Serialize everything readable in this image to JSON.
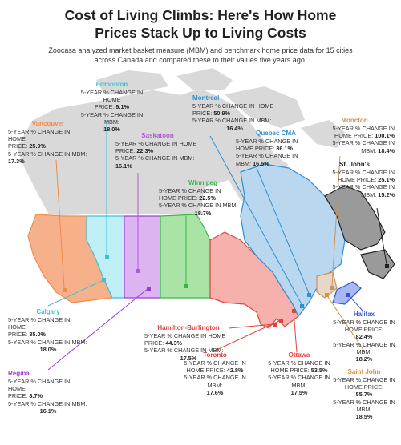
{
  "title_line1": "Cost of Living Climbs: Here's How Home",
  "title_line2": "Prices Stack Up to Living Costs",
  "subtitle_line1": "Zoocasa analyzed market basket measure (MBM) and benchmark home price data for 15 cities",
  "subtitle_line2": "across Canada and compared these to their values five years ago.",
  "cities": {
    "edmonton": {
      "name": "Edmonton",
      "home_price": "9.1%",
      "mbm": "18.0%",
      "color": "#3cc1d6"
    },
    "vancouver": {
      "name": "Vancouver",
      "home_price": "25.9%",
      "mbm": "17.3%",
      "color": "#f08a4b"
    },
    "saskatoon": {
      "name": "Saskatoon",
      "home_price": "22.3%",
      "mbm": "16.1%",
      "color": "#b05ad8"
    },
    "montreal": {
      "name": "Montreal",
      "home_price": "50.9%",
      "mbm": "16.4%",
      "color": "#2f8fd0"
    },
    "quebec": {
      "name": "Quebec CMA",
      "home_price": "36.1%",
      "mbm": "16.5%",
      "color": "#2f8fd0"
    },
    "moncton": {
      "name": "Moncton",
      "home_price": "100.1%",
      "mbm": "18.4%",
      "color": "#c8925a"
    },
    "stjohns": {
      "name": "St. John's",
      "home_price": "25.1%",
      "mbm": "15.2%",
      "color": "#222222"
    },
    "winnipeg": {
      "name": "Winnipeg",
      "home_price": "22.5%",
      "mbm": "18.7%",
      "color": "#3bb54a"
    },
    "calgary": {
      "name": "Calgary",
      "home_price": "35.0%",
      "mbm": "18.0%",
      "color": "#3cc1d6"
    },
    "regina": {
      "name": "Regina",
      "home_price": "8.7%",
      "mbm": "16.1%",
      "color": "#9b3fd0"
    },
    "hamilton": {
      "name": "Hamilton-Burlington",
      "home_price": "44.3%",
      "mbm": "17.5%",
      "color": "#e2433f"
    },
    "toronto": {
      "name": "Toronto",
      "home_price": "42.8%",
      "mbm": "17.6%",
      "color": "#e2433f"
    },
    "ottawa": {
      "name": "Ottawa",
      "home_price": "53.5%",
      "mbm": "17.5%",
      "color": "#e2433f"
    },
    "halifax": {
      "name": "Halifax",
      "home_price": "82.4%",
      "mbm": "18.2%",
      "color": "#3352d6"
    },
    "saintjohn": {
      "name": "Saint John",
      "home_price": "55.7%",
      "mbm": "18.5%",
      "color": "#d9923c"
    }
  },
  "text": {
    "change_home": "5-YEAR % CHANGE IN HOME",
    "change_home_price": "5-YEAR % CHANGE IN HOME PRICE:",
    "price": "PRICE:",
    "change_in": "5-YEAR % CHANGE IN",
    "change_in_mbm": "5-YEAR % CHANGE IN MBM:",
    "home_price": "HOME PRICE:",
    "mbm": "MBM:",
    "home_price_colon": "HOME PRICE:"
  },
  "colors": {
    "land_grey": "#d9d9d9",
    "bc": "#f7b18a",
    "alberta": "#bfeef5",
    "saskatchewan": "#dcb4f2",
    "manitoba": "#a9e3a5",
    "ontario": "#f7b1ac",
    "quebec": "#b9d8ef",
    "newfoundland": "#9a9a9a",
    "new_brunswick": "#e8d6c6",
    "nova_scotia": "#a8b8f2"
  }
}
